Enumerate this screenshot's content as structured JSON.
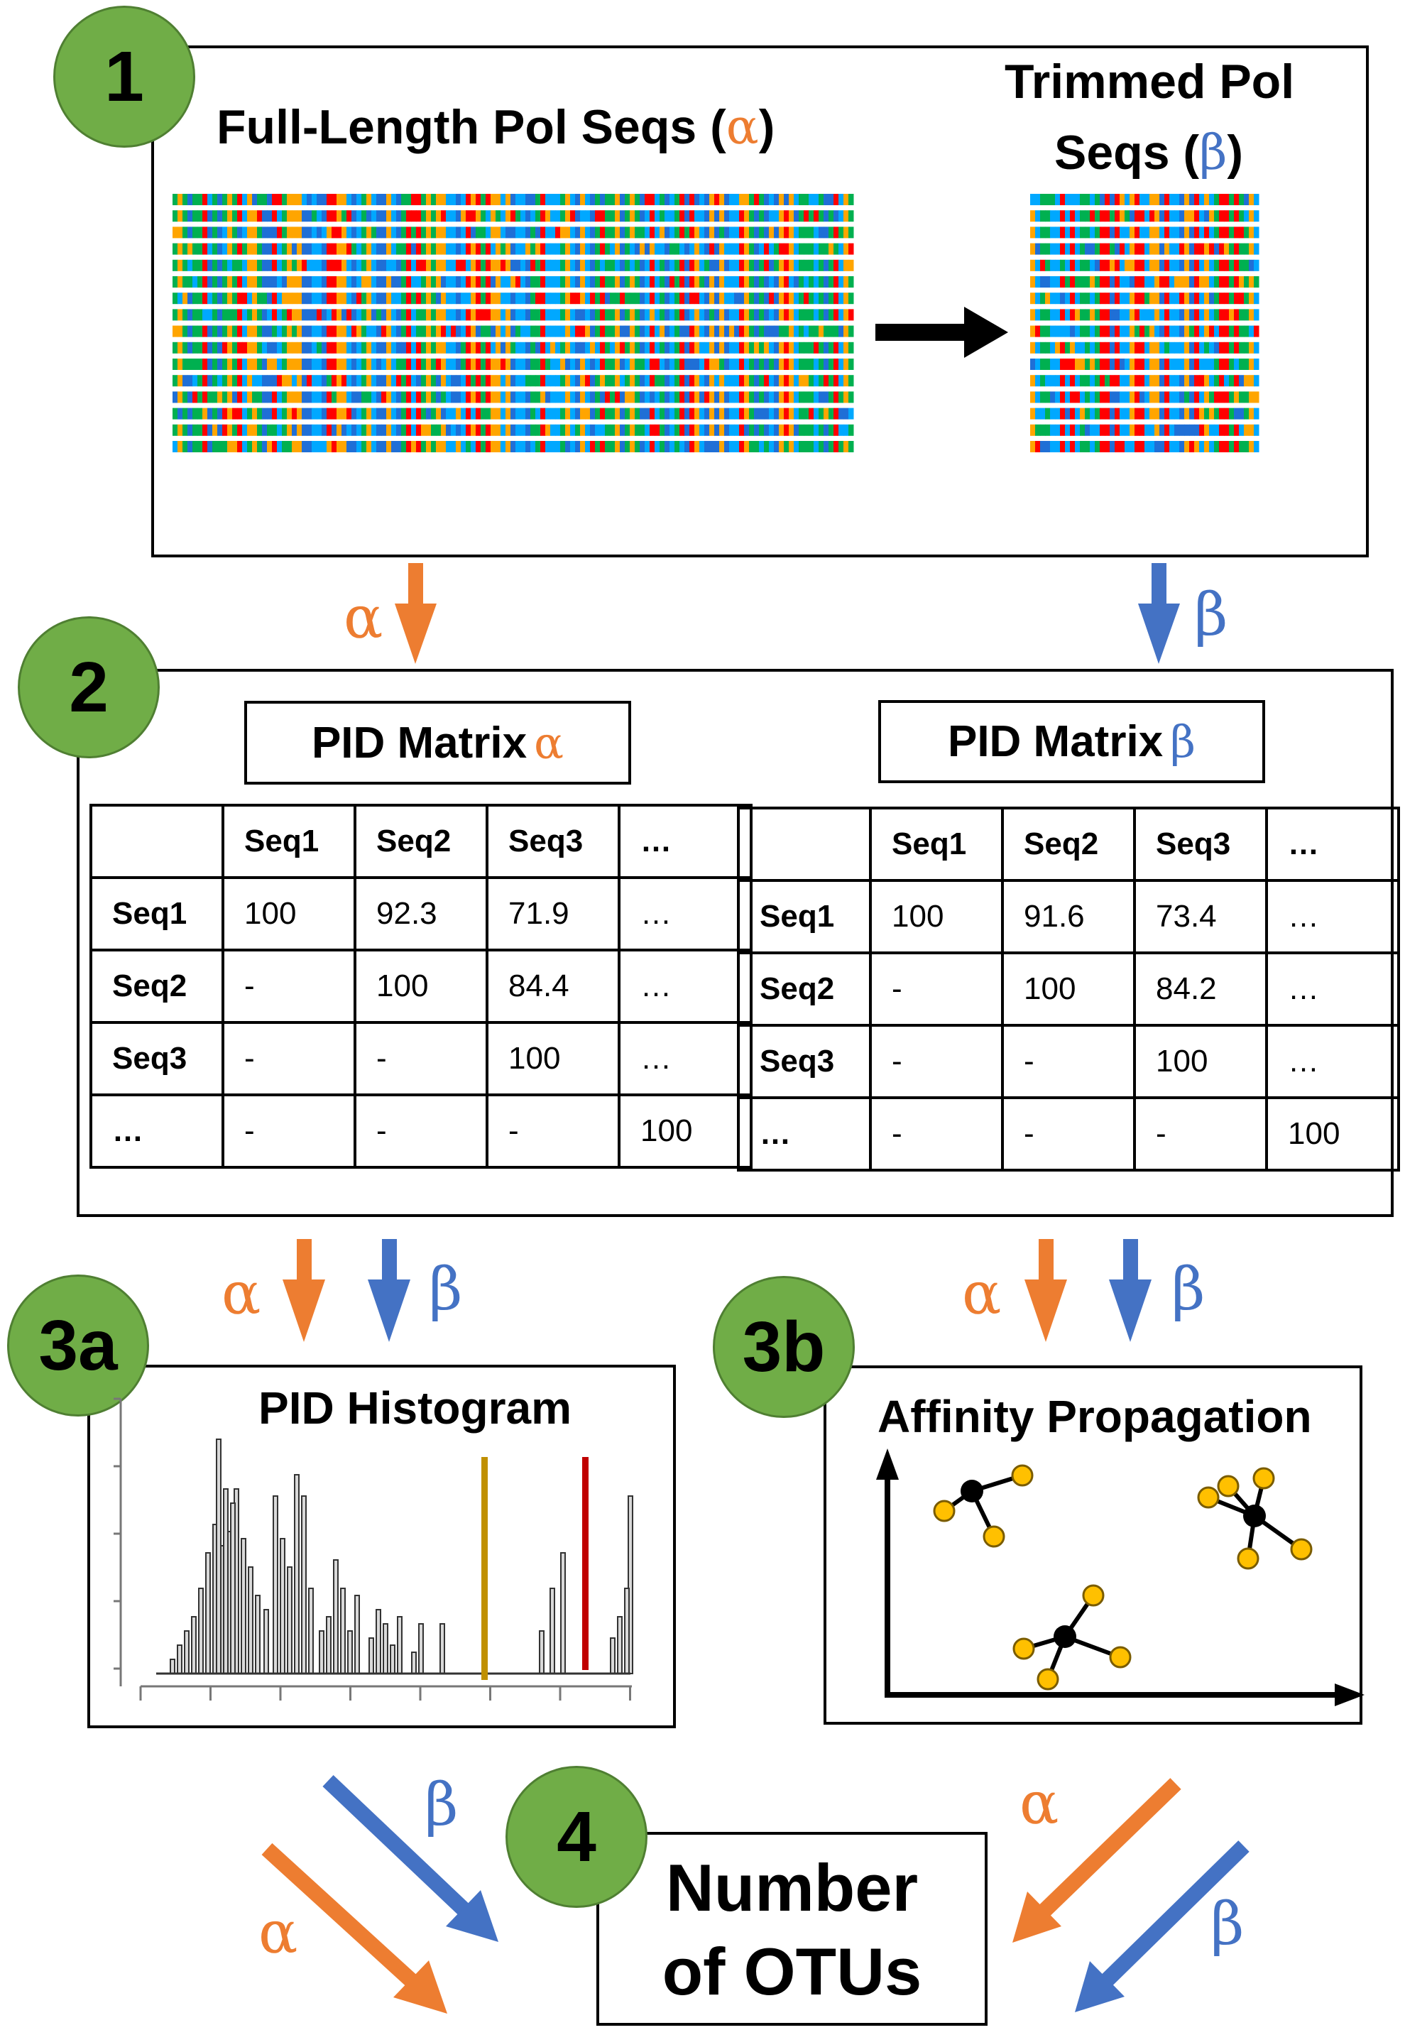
{
  "colors": {
    "alpha": "#ed7d31",
    "beta": "#4472c4",
    "step_circle": "#70ad47",
    "seq_palette": [
      "#ff0000",
      "#ffa500",
      "#00a8ff",
      "#00b050",
      "#1f6fd6"
    ],
    "threshold_gold": "#c09000",
    "threshold_red": "#c00000",
    "node_yellow": "#ffc000"
  },
  "steps": {
    "s1": "1",
    "s2": "2",
    "s3a": "3a",
    "s3b": "3b",
    "s4": "4"
  },
  "panel1": {
    "full_title": "Full-Length Pol Seqs (",
    "full_greek": "α",
    "full_close": ")",
    "trimmed_line1": "Trimmed Pol",
    "trimmed_line2": "Seqs (",
    "trimmed_greek": "β",
    "trimmed_close": ")"
  },
  "arrows": {
    "alpha": "α",
    "beta": "β"
  },
  "matrices": [
    {
      "title": "PID Matrix ",
      "greek": "α",
      "header": [
        "",
        "Seq1",
        "Seq2",
        "Seq3",
        "…"
      ],
      "rows": [
        [
          "Seq1",
          "100",
          "92.3",
          "71.9",
          "…"
        ],
        [
          "Seq2",
          "-",
          "100",
          "84.4",
          "…"
        ],
        [
          "Seq3",
          "-",
          "-",
          "100",
          "…"
        ],
        [
          "…",
          "-",
          "-",
          "-",
          "100"
        ]
      ]
    },
    {
      "title": "PID Matrix ",
      "greek": "β",
      "header": [
        "",
        "Seq1",
        "Seq2",
        "Seq3",
        "…"
      ],
      "rows": [
        [
          "Seq1",
          "100",
          "91.6",
          "73.4",
          "…"
        ],
        [
          "Seq2",
          "-",
          "100",
          "84.2",
          "…"
        ],
        [
          "Seq3",
          "-",
          "-",
          "100",
          "…"
        ],
        [
          "…",
          "-",
          "-",
          "-",
          "100"
        ]
      ]
    }
  ],
  "histogram": {
    "title": "PID Histogram"
  },
  "affinity": {
    "title": "Affinity Propagation"
  },
  "result": {
    "line1": "Number",
    "line2": "of OTUs"
  }
}
